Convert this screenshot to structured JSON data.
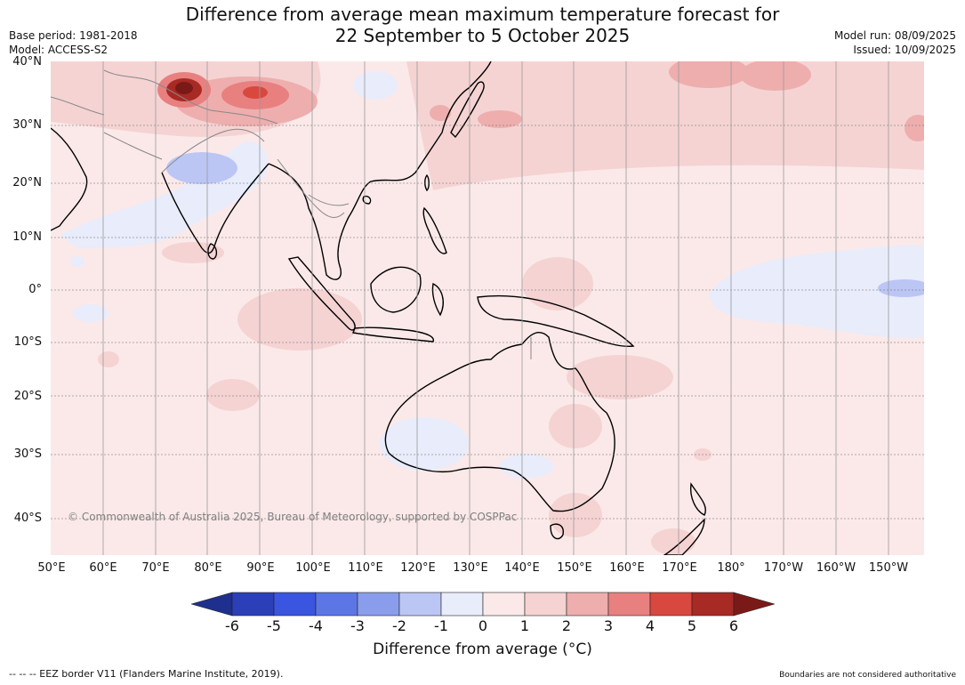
{
  "title_line1": "Difference from average mean maximum temperature forecast for",
  "title_line2": "22 September to 5 October 2025",
  "base_period": "Base period: 1981-2018",
  "model": "Model: ACCESS-S2",
  "model_run": "Model run: 08/09/2025",
  "issued": "Issued: 10/09/2025",
  "copyright": "© Commonwealth of Australia 2025, Bureau of Meteorology, supported by COSPPac",
  "lat_labels": [
    "40°N",
    "30°N",
    "20°N",
    "10°N",
    "0°",
    "10°S",
    "20°S",
    "30°S",
    "40°S"
  ],
  "lon_labels": [
    "50°E",
    "60°E",
    "70°E",
    "80°E",
    "90°E",
    "100°E",
    "110°E",
    "120°E",
    "130°E",
    "140°E",
    "150°E",
    "160°E",
    "170°E",
    "180°",
    "170°W",
    "160°W",
    "150°W"
  ],
  "colorbar": {
    "ticks": [
      "-6",
      "-5",
      "-4",
      "-3",
      "-2",
      "-1",
      "0",
      "1",
      "2",
      "3",
      "4",
      "5",
      "6"
    ],
    "colors": [
      "#1f2f8e",
      "#2b3fb8",
      "#3a55e0",
      "#5d76e6",
      "#8a9dec",
      "#bcc6f4",
      "#e8ecfb",
      "#fbe9e9",
      "#f5d3d3",
      "#eeaeae",
      "#e88080",
      "#d8483f",
      "#a82a24",
      "#7a1a18"
    ],
    "title": "Difference from average (",
    "title_unit": "°C",
    "title_end": ")"
  },
  "footer_left": "--  --  -- EEZ border V11 (Flanders Marine Institute, 2019).",
  "footer_right": "Boundaries are not considered authoritative"
}
